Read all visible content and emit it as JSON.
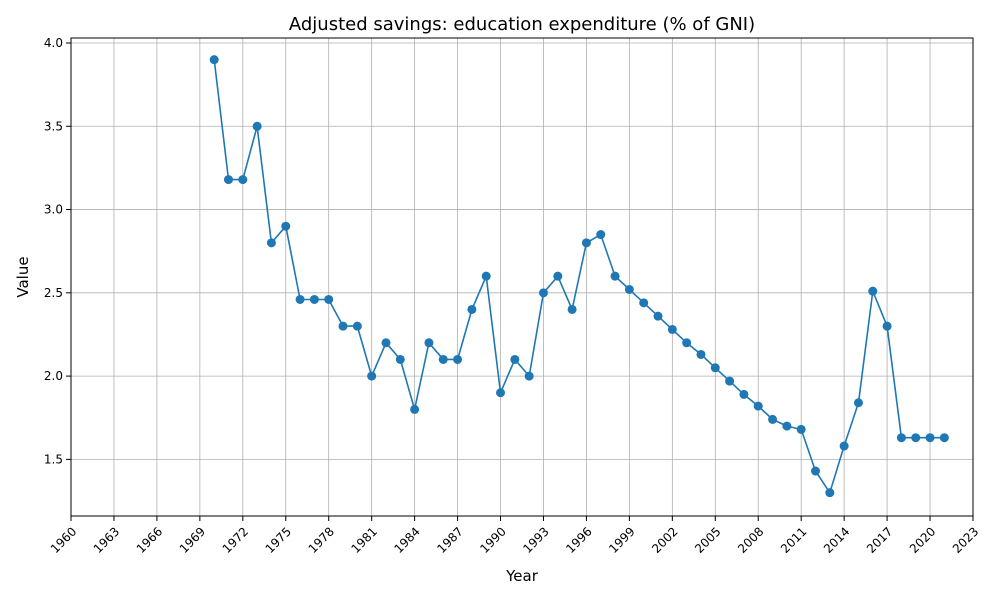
{
  "chart_data": {
    "type": "line",
    "title": "Adjusted savings: education expenditure (% of GNI)",
    "xlabel": "Year",
    "ylabel": "Value",
    "xlim": [
      1960,
      2023
    ],
    "ylim": [
      1.16,
      4.03
    ],
    "grid": true,
    "x_ticks": [
      1960,
      1963,
      1966,
      1969,
      1972,
      1975,
      1978,
      1981,
      1984,
      1987,
      1990,
      1993,
      1996,
      1999,
      2002,
      2005,
      2008,
      2011,
      2014,
      2017,
      2020,
      2023
    ],
    "y_ticks": [
      1.5,
      2.0,
      2.5,
      3.0,
      3.5,
      4.0
    ],
    "y_tick_labels": [
      "1.5",
      "2.0",
      "2.5",
      "3.0",
      "3.5",
      "4.0"
    ],
    "color": "#1f77b4",
    "series": [
      {
        "x": [
          1970,
          1971,
          1972,
          1973,
          1974,
          1975,
          1976,
          1977,
          1978,
          1979,
          1980,
          1981,
          1982,
          1983,
          1984,
          1985,
          1986,
          1987,
          1988,
          1989,
          1990,
          1991,
          1992,
          1993,
          1994,
          1995,
          1996,
          1997,
          1998,
          1999,
          2000,
          2001,
          2002,
          2003,
          2004,
          2005,
          2006,
          2007,
          2008,
          2009,
          2010,
          2011,
          2012,
          2013,
          2014,
          2015,
          2016,
          2017,
          2018,
          2019,
          2020,
          2021
        ],
        "values": [
          3.9,
          3.18,
          3.18,
          3.5,
          2.8,
          2.9,
          2.46,
          2.46,
          2.46,
          2.3,
          2.3,
          2.0,
          2.2,
          2.1,
          1.8,
          2.2,
          2.1,
          2.1,
          2.4,
          2.6,
          1.9,
          2.1,
          2.0,
          2.5,
          2.6,
          2.4,
          2.8,
          2.85,
          2.6,
          2.52,
          2.44,
          2.36,
          2.28,
          2.2,
          2.13,
          2.05,
          1.97,
          1.89,
          1.82,
          1.74,
          1.7,
          1.68,
          1.43,
          1.3,
          1.58,
          1.84,
          2.51,
          2.3,
          1.63,
          1.63,
          1.63,
          1.63
        ]
      }
    ]
  }
}
